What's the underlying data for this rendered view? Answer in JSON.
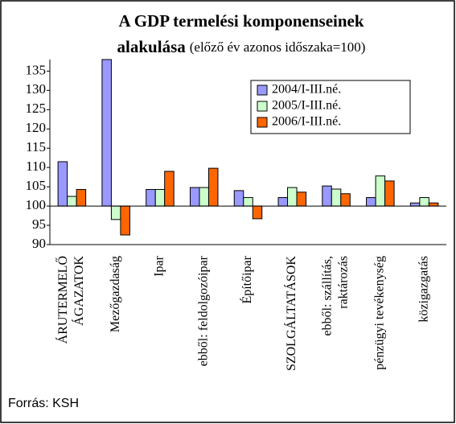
{
  "chart_data": {
    "type": "bar",
    "title": "A GDP termelési komponenseinek",
    "title_line2": "alakulása",
    "subtitle": "(előző év azonos időszaka=100)",
    "source": "Forrás: KSH",
    "categories": [
      [
        "ÁRUTERMELŐ",
        "ÁGAZATOK"
      ],
      [
        "Mezőgazdaság"
      ],
      [
        "Ipar"
      ],
      [
        "ebből: feldolgozóipar"
      ],
      [
        "Építőipar"
      ],
      [
        "SZOLGÁLTATÁSOK"
      ],
      [
        "ebből: szállítás,",
        "raktározás"
      ],
      [
        "pénzügyi tevékenység"
      ],
      [
        "közigazgatás"
      ]
    ],
    "series": [
      {
        "name": "2004/I-III.né.",
        "color": "#9999ff",
        "values": [
          111.5,
          138,
          104.3,
          104.8,
          104,
          102.2,
          105.2,
          102.2,
          100.8
        ]
      },
      {
        "name": "2005/I-III.né.",
        "color": "#ccffcc",
        "values": [
          102.5,
          96.5,
          104.3,
          104.8,
          102.2,
          104.8,
          104.4,
          107.8,
          102.2
        ]
      },
      {
        "name": "2006/I-III.né.",
        "color": "#ff6600",
        "values": [
          104.3,
          92.5,
          109,
          109.8,
          96.7,
          103.6,
          103.2,
          106.5,
          100.8
        ]
      }
    ],
    "baseline": 100,
    "ylim": [
      90,
      138
    ],
    "yticks": [
      90,
      95,
      100,
      105,
      110,
      115,
      120,
      125,
      130,
      135
    ],
    "legend": "top-right"
  }
}
